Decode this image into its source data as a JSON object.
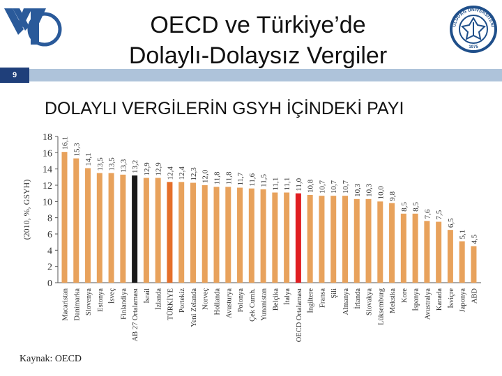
{
  "header": {
    "title_line1": "OECD ve Türkiye’de",
    "title_line2": "Dolaylı-Dolaysız Vergiler",
    "slide_number": "9",
    "subtitle": "DOLAYLI VERGİLERİN GSYH İÇİNDEKİ PAYI"
  },
  "logos": {
    "right_text": "ULUDAĞ ÜNİVERSİTESİ",
    "right_year": "1975"
  },
  "footer": {
    "source": "Kaynak: OECD"
  },
  "colors": {
    "bar_default": "#e8a25c",
    "ab27": "#1a1a1a",
    "turkiye": "#e56f2a",
    "oecd": "#e01e22",
    "slide_number_bg": "#1f3f7a",
    "slide_band": "#aec3da",
    "logo_blue": "#2a5a9a"
  },
  "chart_data": {
    "type": "bar",
    "ylabel": "(2010, %, GSYH)",
    "ylim": [
      0,
      18
    ],
    "yticks": [
      "0",
      "2",
      "4",
      "6",
      "8",
      "10",
      "12",
      "14",
      "16",
      "18"
    ],
    "grid": false,
    "categories": [
      "Macaristan",
      "Danimarka",
      "Slovenya",
      "Estonya",
      "İsveç",
      "Finlandiya",
      "AB 27 Ortalaması",
      "İsrail",
      "İzlanda",
      "TÜRKİYE",
      "Portekiz",
      "Yeni Zelanda",
      "Norveç",
      "Hollanda",
      "Avusturya",
      "Polonya",
      "Çek Cumh.",
      "Yunanistan",
      "Belçika",
      "İtalya",
      "OECD Ortalaması",
      "İngiltere",
      "Fransa",
      "Şili",
      "Almanya",
      "İrlanda",
      "Slovakya",
      "Lüksemburg",
      "Meksika",
      "Kore",
      "İspanya",
      "Avustralya",
      "Kanada",
      "İsviçre",
      "Japonya",
      "ABD"
    ],
    "values": [
      16.1,
      15.3,
      14.1,
      13.5,
      13.5,
      13.3,
      13.2,
      12.9,
      12.9,
      12.4,
      12.4,
      12.3,
      12.0,
      11.8,
      11.8,
      11.7,
      11.6,
      11.5,
      11.1,
      11.1,
      11.0,
      10.8,
      10.7,
      10.7,
      10.7,
      10.3,
      10.3,
      10.0,
      9.8,
      8.5,
      8.5,
      7.6,
      7.5,
      6.5,
      5.1,
      4.5
    ],
    "value_labels": [
      "16,1",
      "15,3",
      "14,1",
      "13,5",
      "13,5",
      "13,3",
      "13,2",
      "12,9",
      "12,9",
      "12,4",
      "12,4",
      "12,3",
      "12,0",
      "11,8",
      "11,8",
      "11,7",
      "11,6",
      "11,5",
      "11,1",
      "11,1",
      "11,0",
      "10,8",
      "10,7",
      "10,7",
      "10,7",
      "10,3",
      "10,3",
      "10,0",
      "9,8",
      "8,5",
      "8,5",
      "7,6",
      "7,5",
      "6,5",
      "5,1",
      "4,5"
    ],
    "highlights": {
      "AB 27 Ortalaması": "ab27",
      "TÜRKİYE": "turkiye",
      "OECD Ortalaması": "oecd"
    }
  }
}
